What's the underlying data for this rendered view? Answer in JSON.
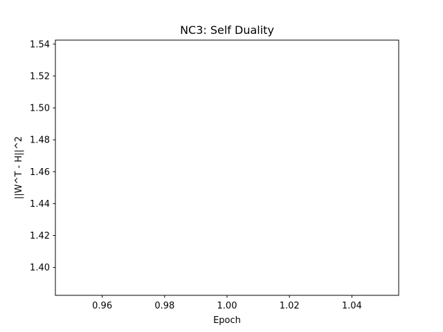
{
  "chart_data": {
    "type": "line",
    "title": "NC3: Self Duality",
    "xlabel": "Epoch",
    "ylabel": "||W^T - H||^2",
    "xlim": [
      0.945,
      1.055
    ],
    "ylim": [
      1.3825,
      1.5425
    ],
    "xticks": [
      {
        "value": 0.96,
        "label": "0.96"
      },
      {
        "value": 0.98,
        "label": "0.98"
      },
      {
        "value": 1.0,
        "label": "1.00"
      },
      {
        "value": 1.02,
        "label": "1.02"
      },
      {
        "value": 1.04,
        "label": "1.04"
      }
    ],
    "yticks": [
      {
        "value": 1.4,
        "label": "1.40"
      },
      {
        "value": 1.42,
        "label": "1.42"
      },
      {
        "value": 1.44,
        "label": "1.44"
      },
      {
        "value": 1.46,
        "label": "1.46"
      },
      {
        "value": 1.48,
        "label": "1.48"
      },
      {
        "value": 1.5,
        "label": "1.50"
      },
      {
        "value": 1.52,
        "label": "1.52"
      },
      {
        "value": 1.54,
        "label": "1.54"
      }
    ],
    "series": [],
    "grid": false,
    "legend": "none",
    "colors": {
      "axis": "#000000",
      "background": "#ffffff"
    }
  }
}
